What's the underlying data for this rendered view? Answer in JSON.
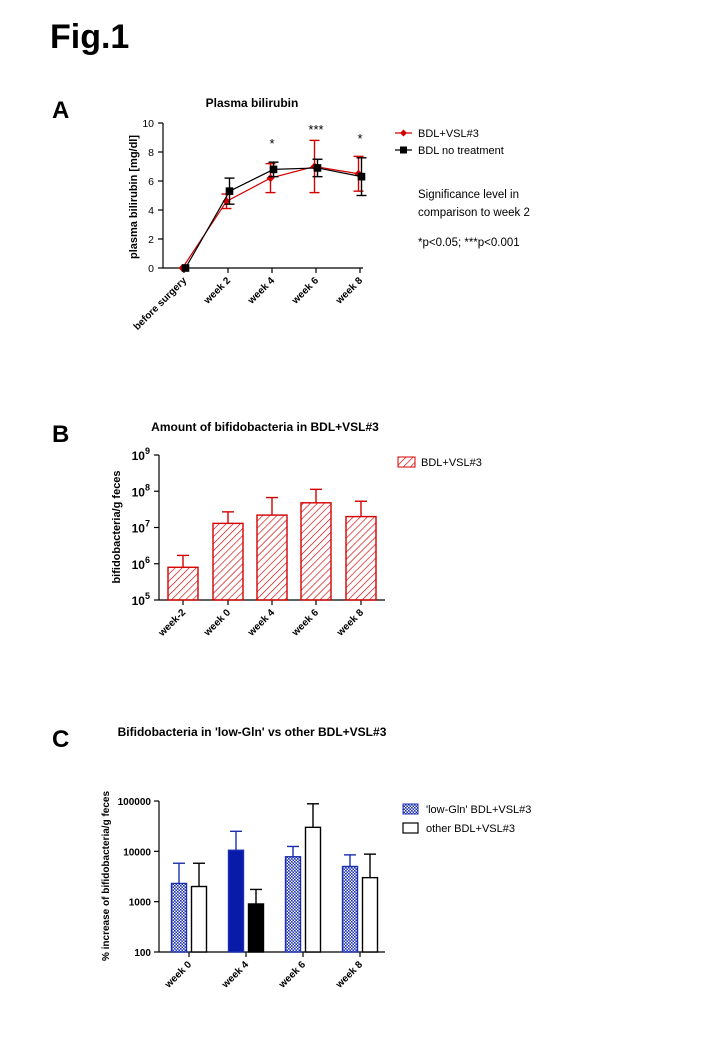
{
  "figure_title": "Fig.1",
  "colors": {
    "red": "#d40000",
    "black": "#000000",
    "blue": "#1a2fb0",
    "dark_blue": "#0a1aa8"
  },
  "chart_data": [
    {
      "id": "A",
      "panel_label": "A",
      "type": "line",
      "title": "Plasma bilirubin",
      "xlabel": "",
      "ylabel": "plasma bilirubin [mg/dl]",
      "categories": [
        "before surgery",
        "week 2",
        "week 4",
        "week 6",
        "week 8"
      ],
      "ylim": [
        0,
        10
      ],
      "yticks": [
        "0",
        "2",
        "4",
        "6",
        "8",
        "10"
      ],
      "grid": false,
      "legend_position": "right",
      "series": [
        {
          "name": "BDL+VSL#3",
          "color": "#d40000",
          "marker": "circle",
          "values": [
            0,
            4.6,
            6.2,
            7.0,
            6.5
          ],
          "errors": [
            0,
            0.5,
            1.0,
            1.8,
            1.2
          ]
        },
        {
          "name": "BDL no treatment",
          "color": "#000000",
          "marker": "square",
          "values": [
            0,
            5.3,
            6.8,
            6.9,
            6.3
          ],
          "errors": [
            0,
            0.9,
            0.5,
            0.6,
            1.3
          ]
        }
      ],
      "significance": [
        "",
        "",
        "*",
        "***",
        "*"
      ],
      "note_lines": [
        "Significance level in",
        "comparison to week 2",
        "",
        "*p<0.05; ***p<0.001"
      ]
    },
    {
      "id": "B",
      "panel_label": "B",
      "type": "bar",
      "title": "Amount of bifidobacteria in BDL+VSL#3",
      "xlabel": "",
      "ylabel": "bifidobacteria/g feces",
      "yscale": "log",
      "categories": [
        "week-2",
        "week 0",
        "week 4",
        "week 6",
        "week 8"
      ],
      "ylim": [
        100000,
        1000000000
      ],
      "ytick_base": "10",
      "ytick_exponents": [
        "5",
        "6",
        "7",
        "8",
        "9"
      ],
      "grid": false,
      "legend_position": "top-right",
      "series": [
        {
          "name": "BDL+VSL#3",
          "color": "#d40000",
          "pattern": "diagonal-hatch",
          "values": [
            800000,
            13000000,
            22000000,
            48000000,
            20000000
          ],
          "errors": [
            900000,
            14000000,
            45000000,
            65000000,
            33000000
          ]
        }
      ]
    },
    {
      "id": "C",
      "panel_label": "C",
      "type": "bar",
      "title": "Bifidobacteria in 'low-Gln' vs other BDL+VSL#3",
      "xlabel": "",
      "ylabel": "% increase of bifidobacteria/g feces",
      "yscale": "log",
      "categories": [
        "week 0",
        "week 4",
        "week 6",
        "week 8"
      ],
      "ylim": [
        100,
        100000
      ],
      "yticks": [
        "100",
        "1000",
        "10000",
        "100000"
      ],
      "grid": false,
      "legend_position": "top-right",
      "series": [
        {
          "name": "'low-Gln' BDL+VSL#3",
          "color": "#1a2fb0",
          "pattern": "dotted",
          "values": [
            2300,
            10500,
            7800,
            5000
          ],
          "errors": [
            3500,
            14500,
            4700,
            3500
          ]
        },
        {
          "name": "other BDL+VSL#3",
          "color": "#000000",
          "pattern": "empty",
          "values": [
            2000,
            900,
            30000,
            3000
          ],
          "errors": [
            3800,
            850,
            58000,
            5800
          ]
        }
      ]
    }
  ]
}
